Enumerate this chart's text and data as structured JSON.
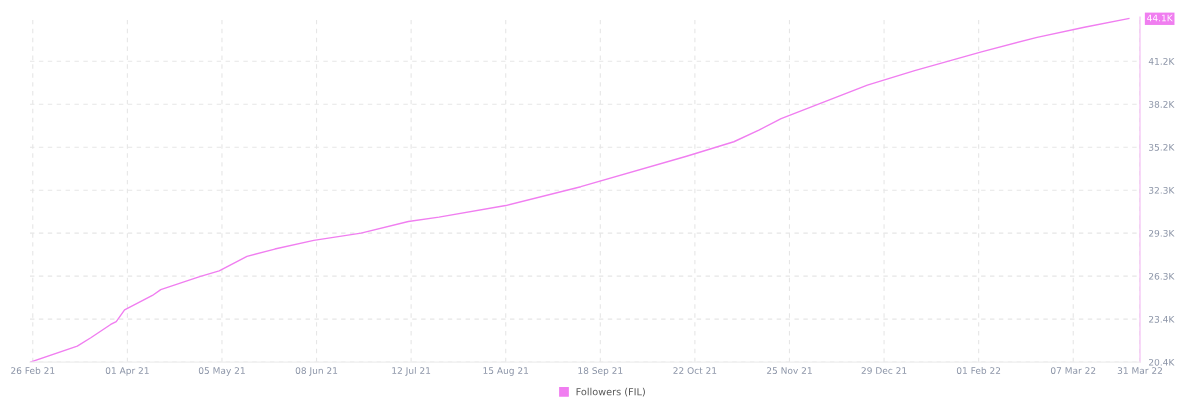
{
  "chart_data": {
    "type": "line",
    "legend": "bottom",
    "grid": true,
    "marker": "none",
    "line_style": "solid",
    "series": [
      {
        "name": "Followers (FIL)",
        "color": "#f07ef0",
        "x": [
          "2021-02-25",
          "2021-03-14",
          "2021-03-19",
          "2021-03-26",
          "2021-03-28",
          "2021-03-31",
          "2021-04-10",
          "2021-04-13",
          "2021-04-27",
          "2021-05-04",
          "2021-05-14",
          "2021-05-24",
          "2021-06-07",
          "2021-06-24",
          "2021-07-11",
          "2021-07-22",
          "2021-08-15",
          "2021-09-11",
          "2021-10-19",
          "2021-11-05",
          "2021-11-14",
          "2021-11-22",
          "2021-12-23",
          "2022-01-09",
          "2022-02-02",
          "2022-02-22",
          "2022-03-11",
          "2022-03-27"
        ],
        "values": [
          20400,
          21500,
          22100,
          23000,
          23200,
          24000,
          25000,
          25400,
          26300,
          26700,
          27700,
          28200,
          28800,
          29300,
          30100,
          30400,
          31200,
          32500,
          34600,
          35600,
          36400,
          37200,
          39500,
          40500,
          41800,
          42800,
          43500,
          44100
        ]
      }
    ],
    "xlim": [
      "2021-02-25",
      "2022-03-31"
    ],
    "xticks": [
      {
        "value": "2021-02-26",
        "label": "26 Feb 21"
      },
      {
        "value": "2021-04-01",
        "label": "01 Apr 21"
      },
      {
        "value": "2021-05-05",
        "label": "05 May 21"
      },
      {
        "value": "2021-06-08",
        "label": "08 Jun 21"
      },
      {
        "value": "2021-07-12",
        "label": "12 Jul 21"
      },
      {
        "value": "2021-08-15",
        "label": "15 Aug 21"
      },
      {
        "value": "2021-09-18",
        "label": "18 Sep 21"
      },
      {
        "value": "2021-10-22",
        "label": "22 Oct 21"
      },
      {
        "value": "2021-11-25",
        "label": "25 Nov 21"
      },
      {
        "value": "2021-12-29",
        "label": "29 Dec 21"
      },
      {
        "value": "2022-02-01",
        "label": "01 Feb 22"
      },
      {
        "value": "2022-03-07",
        "label": "07 Mar 22"
      },
      {
        "value": "2022-03-31",
        "label": "31 Mar 22"
      }
    ],
    "ylim": [
      20400,
      44200
    ],
    "yticks": [
      {
        "value": 20400,
        "label": "20.4K"
      },
      {
        "value": 23365,
        "label": "23.4K"
      },
      {
        "value": 26330,
        "label": "26.3K"
      },
      {
        "value": 29295,
        "label": "29.3K"
      },
      {
        "value": 32260,
        "label": "32.3K"
      },
      {
        "value": 35225,
        "label": "35.2K"
      },
      {
        "value": 38190,
        "label": "38.2K"
      },
      {
        "value": 41155,
        "label": "41.2K"
      }
    ],
    "annotations": [
      "44.1K"
    ]
  }
}
